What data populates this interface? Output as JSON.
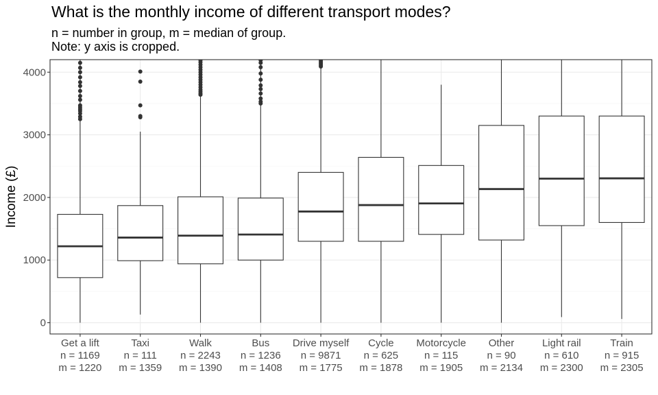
{
  "chart_data": {
    "type": "boxplot",
    "title": "What is the monthly income of different transport modes?",
    "subtitle_lines": [
      "n = number in group, m = median of group.",
      "Note: y axis is cropped."
    ],
    "xlabel": "",
    "ylabel": "Income (£)",
    "ylim": [
      -180,
      4200
    ],
    "yticks": [
      0,
      1000,
      2000,
      3000,
      4000
    ],
    "grid": true,
    "categories": [
      {
        "name": "Get a lift",
        "n_label": "n = 1169",
        "m_label": "m = 1220",
        "min": 0,
        "q1": 720,
        "median": 1220,
        "q3": 1730,
        "max": 4200,
        "outliers": [
          3250,
          3290,
          3340,
          3380,
          3410,
          3440,
          3470,
          3560,
          3620,
          3700,
          3780,
          3840,
          3920,
          4000,
          4070,
          4150
        ]
      },
      {
        "name": "Taxi",
        "n_label": "n = 111",
        "m_label": "m = 1359",
        "min": 130,
        "q1": 990,
        "median": 1359,
        "q3": 1870,
        "max": 3050,
        "outliers": [
          3280,
          3300,
          3470,
          3850,
          4010
        ]
      },
      {
        "name": "Walk",
        "n_label": "n = 2243",
        "m_label": "m = 1390",
        "min": 0,
        "q1": 940,
        "median": 1390,
        "q3": 2010,
        "max": 4200,
        "outliers": [
          3640,
          3660,
          3690,
          3720,
          3760,
          3800,
          3840,
          3880,
          3920,
          3960,
          4000,
          4040,
          4080,
          4120,
          4160,
          4190
        ]
      },
      {
        "name": "Bus",
        "n_label": "n = 1236",
        "m_label": "m = 1408",
        "min": 0,
        "q1": 1000,
        "median": 1408,
        "q3": 1990,
        "max": 4200,
        "outliers": [
          3500,
          3530,
          3580,
          3660,
          3730,
          3790,
          3880,
          3980,
          4080,
          4150,
          4190
        ]
      },
      {
        "name": "Drive myself",
        "n_label": "n = 9871",
        "m_label": "m = 1775",
        "min": 0,
        "q1": 1300,
        "median": 1775,
        "q3": 2400,
        "max": 4200,
        "outliers": [
          4090,
          4110,
          4130,
          4150,
          4170,
          4190
        ]
      },
      {
        "name": "Cycle",
        "n_label": "n = 625",
        "m_label": "m = 1878",
        "min": 0,
        "q1": 1300,
        "median": 1878,
        "q3": 2640,
        "max": 4200,
        "outliers": []
      },
      {
        "name": "Motorcycle",
        "n_label": "n = 115",
        "m_label": "m = 1905",
        "min": 0,
        "q1": 1410,
        "median": 1905,
        "q3": 2510,
        "max": 3800,
        "outliers": []
      },
      {
        "name": "Other",
        "n_label": "n = 90",
        "m_label": "m = 2134",
        "min": 0,
        "q1": 1320,
        "median": 2134,
        "q3": 3150,
        "max": 4200,
        "outliers": []
      },
      {
        "name": "Light rail",
        "n_label": "n = 610",
        "m_label": "m = 2300",
        "min": 90,
        "q1": 1550,
        "median": 2300,
        "q3": 3300,
        "max": 4200,
        "outliers": []
      },
      {
        "name": "Train",
        "n_label": "n = 915",
        "m_label": "m = 2305",
        "min": 60,
        "q1": 1600,
        "median": 2305,
        "q3": 3300,
        "max": 4200,
        "outliers": []
      }
    ],
    "colors": {
      "panel_border": "#333333",
      "grid_major": "#ebebeb",
      "grid_minor": "#f5f5f5",
      "box_line": "#333333",
      "outlier": "#333333"
    }
  }
}
